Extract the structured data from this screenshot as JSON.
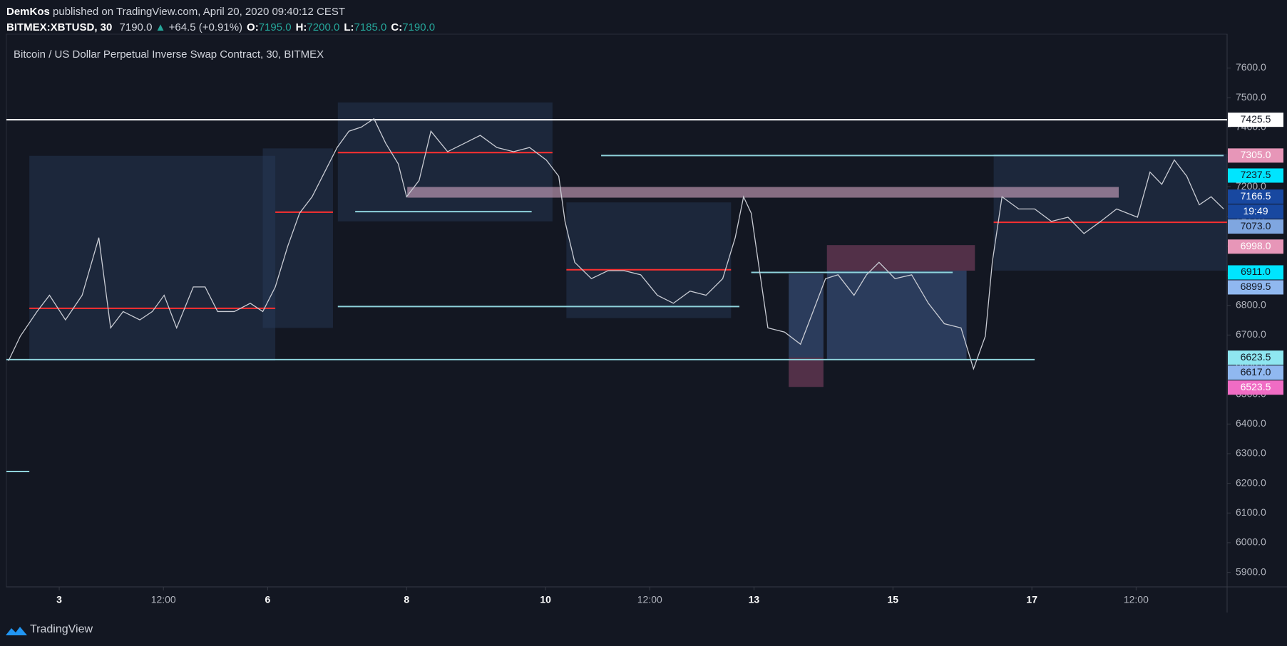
{
  "header": {
    "author": "DemKos",
    "published": "published on TradingView.com, April 20, 2020 09:40:12 CEST",
    "symbol": "BITMEX:XBTUSD, 30",
    "last": "7190.0",
    "change_arrow": "▲",
    "change": "+64.5 (+0.91%)",
    "ohlc": [
      {
        "key": "O:",
        "value": "7195.0"
      },
      {
        "key": "H:",
        "value": "7200.0"
      },
      {
        "key": "L:",
        "value": "7185.0"
      },
      {
        "key": "C:",
        "value": "7190.0"
      }
    ]
  },
  "chart_data": {
    "type": "line",
    "title": "Bitcoin / US Dollar Perpetual Inverse Swap Contract, 30, BITMEX",
    "x": [
      2.27,
      2.44,
      2.68,
      2.86,
      3.09,
      3.33,
      3.57,
      3.74,
      3.92,
      4.16,
      4.34,
      4.51,
      4.69,
      4.93,
      5.1,
      5.28,
      5.52,
      5.75,
      5.93,
      6.11,
      6.29,
      6.46,
      6.64,
      6.82,
      7.0,
      7.17,
      7.35,
      7.53,
      7.7,
      7.88,
      8.0,
      8.18,
      8.35,
      8.59,
      8.83,
      9.06,
      9.3,
      9.54,
      9.77,
      10.01,
      10.19,
      10.28,
      10.42,
      10.66,
      10.9,
      11.13,
      11.37,
      11.61,
      11.84,
      12.08,
      12.31,
      12.55,
      12.73,
      12.85,
      12.96,
      13.08,
      13.2,
      13.44,
      13.67,
      13.85,
      14.03,
      14.21,
      14.44,
      14.62,
      14.8,
      15.03,
      15.27,
      15.51,
      15.74,
      15.98,
      16.16,
      16.33,
      16.43,
      16.57,
      16.81,
      17.04,
      17.28,
      17.52,
      17.75,
      17.99,
      18.22,
      18.52,
      18.7,
      18.87,
      19.05,
      19.23,
      19.41,
      19.58,
      19.76
    ],
    "series": [
      {
        "color": "#c9ccd4",
        "values": [
          6613,
          6696,
          6779,
          6834,
          6751,
          6834,
          7028,
          6724,
          6779,
          6751,
          6779,
          6834,
          6724,
          6862,
          6862,
          6779,
          6779,
          6807,
          6779,
          6862,
          7000,
          7111,
          7166,
          7249,
          7332,
          7387,
          7401,
          7429,
          7346,
          7277,
          7166,
          7221,
          7387,
          7318,
          7346,
          7373,
          7332,
          7318,
          7332,
          7290,
          7235,
          7083,
          6945,
          6890,
          6917,
          6917,
          6903,
          6834,
          6807,
          6848,
          6834,
          6890,
          7028,
          7166,
          7111,
          6917,
          6724,
          6710,
          6669,
          6779,
          6890,
          6903,
          6834,
          6903,
          6945,
          6890,
          6903,
          6807,
          6738,
          6724,
          6586,
          6696,
          6945,
          7166,
          7125,
          7125,
          7083,
          7097,
          7042,
          7083,
          7125,
          7097,
          7249,
          7208,
          7290,
          7235,
          7139,
          7166,
          7125
        ]
      }
    ],
    "xlim": [
      2.24,
      19.81
    ],
    "xticks": [
      3,
      {
        "value": 4.5,
        "label": "12:00"
      },
      6,
      8,
      10,
      {
        "value": 11.5,
        "label": "12:00"
      },
      13,
      15,
      17,
      {
        "value": 18.5,
        "label": "12:00"
      }
    ],
    "ylim": [
      5851,
      7714
    ],
    "yticks": [
      {
        "value": 5900,
        "label": "5900.0"
      },
      {
        "value": 6000,
        "label": "6000.0"
      },
      {
        "value": 6100,
        "label": "6100.0"
      },
      {
        "value": 6200,
        "label": "6200.0"
      },
      {
        "value": 6300,
        "label": "6300.0"
      },
      {
        "value": 6400,
        "label": "6400.0"
      },
      {
        "value": 6500,
        "label": "6500.0"
      },
      {
        "value": 6600,
        "label": "6600.0"
      },
      {
        "value": 6700,
        "label": "6700.0"
      },
      {
        "value": 6800,
        "label": "6800.0"
      },
      {
        "value": 6900,
        "label": "6900.0"
      },
      {
        "value": 7000,
        "label": "7000.0"
      },
      {
        "value": 7100,
        "label": "7100.0"
      },
      {
        "value": 7200,
        "label": "7200.0"
      },
      {
        "value": 7300,
        "label": "7300.0"
      },
      {
        "value": 7400,
        "label": "7400.0"
      },
      {
        "value": 7500,
        "label": "7500.0"
      },
      {
        "value": 7600,
        "label": "7600.0"
      }
    ],
    "boxes": [
      {
        "x": [
          2.57,
          6.11
        ],
        "y": [
          6613,
          7304
        ],
        "color": "rgba(40,60,90,0.45)"
      },
      {
        "x": [
          5.93,
          6.94
        ],
        "y": [
          6724,
          7329
        ],
        "color": "rgba(40,60,90,0.45)"
      },
      {
        "x": [
          7.01,
          10.1
        ],
        "y": [
          7083,
          7484
        ],
        "color": "rgba(40,60,90,0.45)"
      },
      {
        "x": [
          10.3,
          12.67
        ],
        "y": [
          6757,
          7147
        ],
        "color": "rgba(40,60,90,0.45)"
      },
      {
        "x": [
          16.45,
          19.81
        ],
        "y": [
          6917,
          7310
        ],
        "color": "rgba(40,60,90,0.45)"
      },
      {
        "x": [
          8.01,
          18.25
        ],
        "y": [
          7163,
          7199
        ],
        "color": "rgba(230,180,210,0.55)"
      },
      {
        "x": [
          14.05,
          16.18
        ],
        "y": [
          6917,
          7003
        ],
        "color": "rgba(160,80,120,0.45)"
      },
      {
        "x": [
          14.05,
          16.06
        ],
        "y": [
          6619,
          6917
        ],
        "color": "rgba(90,130,200,0.35)"
      },
      {
        "x": [
          13.5,
          14.0
        ],
        "y": [
          6525,
          6624
        ],
        "color": "rgba(160,80,120,0.45)"
      },
      {
        "x": [
          13.5,
          14.0
        ],
        "y": [
          6624,
          6906
        ],
        "color": "rgba(90,130,200,0.35)"
      }
    ],
    "levels": [
      {
        "x": [
          2.24,
          19.81
        ],
        "price": 7425.5,
        "color": "#ffffff"
      },
      {
        "x": [
          10.8,
          19.76
        ],
        "price": 7305,
        "color": "#8fd3dc"
      },
      {
        "x": [
          2.24,
          17.04
        ],
        "price": 6617,
        "color": "#8fd3dc"
      },
      {
        "x": [
          12.96,
          15.86
        ],
        "price": 6911,
        "color": "#8fd3dc"
      },
      {
        "x": [
          7.01,
          12.79
        ],
        "price": 6796,
        "color": "#8fd3dc"
      },
      {
        "x": [
          7.26,
          9.8
        ],
        "price": 7116,
        "color": "#8fd3dc"
      },
      {
        "x": [
          2.24,
          2.57
        ],
        "price": 6240,
        "color": "#8fd3dc"
      },
      {
        "x": [
          2.57,
          6.11
        ],
        "price": 6790,
        "color": "#ff3030"
      },
      {
        "x": [
          6.11,
          6.94
        ],
        "price": 7114,
        "color": "#ff3030"
      },
      {
        "x": [
          7.01,
          10.1
        ],
        "price": 7315,
        "color": "#ff3030"
      },
      {
        "x": [
          10.3,
          12.67
        ],
        "price": 6920,
        "color": "#ff3030"
      },
      {
        "x": [
          16.45,
          19.81
        ],
        "price": 7080,
        "color": "#ff3030"
      }
    ],
    "price_labels": [
      {
        "value": 7425.5,
        "label": "7425.5",
        "bg": "#ffffff",
        "fg": "#131722"
      },
      {
        "value": 7305,
        "label": "7305.0",
        "bg": "#e796b8",
        "fg": "#ffffff"
      },
      {
        "value": 7237.5,
        "label": "7237.5",
        "bg": "#00e5ff",
        "fg": "#131722"
      },
      {
        "value": 7166.5,
        "label": "7166.5",
        "bg": "#1848a0",
        "fg": "#ffffff"
      },
      {
        "label": "19:49",
        "bg": "#1848a0",
        "fg": "#ffffff"
      },
      {
        "value": 7073,
        "label": "7073.0",
        "bg": "#7fa6e0",
        "fg": "#131722"
      },
      {
        "value": 6998,
        "label": "6998.0",
        "bg": "#e796b8",
        "fg": "#ffffff"
      },
      {
        "value": 6911,
        "label": "6911.0",
        "bg": "#00e5ff",
        "fg": "#131722"
      },
      {
        "value": 6899.5,
        "label": "6899.5",
        "bg": "#90b8f0",
        "fg": "#131722"
      },
      {
        "value": 6623.5,
        "label": "6623.5",
        "bg": "#8fe6f0",
        "fg": "#131722"
      },
      {
        "value": 6617,
        "label": "6617.0",
        "bg": "#90b8f0",
        "fg": "#131722"
      },
      {
        "value": 6523.5,
        "label": "6523.5",
        "bg": "#f06cc4",
        "fg": "#ffffff"
      }
    ]
  },
  "footer": {
    "brand": "TradingView"
  }
}
